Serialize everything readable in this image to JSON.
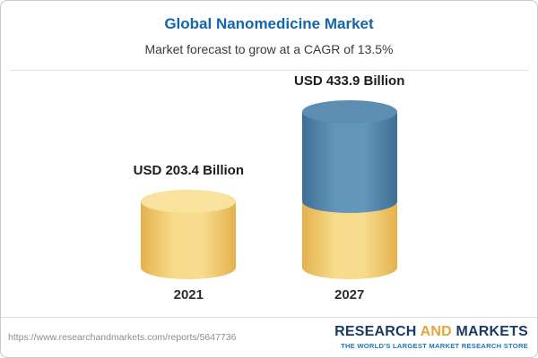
{
  "header": {
    "title": "Global Nanomedicine Market",
    "subtitle": "Market forecast to grow at a CAGR of 13.5%"
  },
  "chart_data": {
    "type": "bar",
    "style": "3d-cylinder",
    "categories": [
      "2021",
      "2027"
    ],
    "values": [
      203.4,
      433.9
    ],
    "value_labels": [
      "USD 203.4 Billion",
      "USD 433.9 Billion"
    ],
    "unit": "USD Billion",
    "cagr_percent": 13.5,
    "grid": false,
    "legend_position": "none",
    "note": "2027 bar is split: bottom yellow segment equals the 2021 value (203.4), upper blue segment is the growth up to 433.9"
  },
  "footer": {
    "url": "https://www.researchandmarkets.com/reports/5647736",
    "logo": {
      "research": "RESEARCH",
      "and": "AND",
      "markets": "MARKETS",
      "tagline": "THE WORLD'S LARGEST MARKET RESEARCH STORE"
    }
  },
  "colors": {
    "title_blue": "#1565ad",
    "text_dark": "#3a3a3a",
    "bar_yellow_light": "#f7dc8d",
    "bar_yellow_dark": "#e5b14c",
    "bar_yellow_cap": "#f8e29e",
    "bar_blue_light": "#6496bb",
    "bar_blue_dark": "#3e6e95",
    "bar_blue_cap": "#5e8db2",
    "logo_navy": "#1c3a66",
    "logo_gold": "#e8a33d",
    "tagline_blue": "#1f78b8",
    "url_gray": "#8c8c8c",
    "divider_gray": "#e0e0e0",
    "card_border": "#c9c9c9"
  }
}
